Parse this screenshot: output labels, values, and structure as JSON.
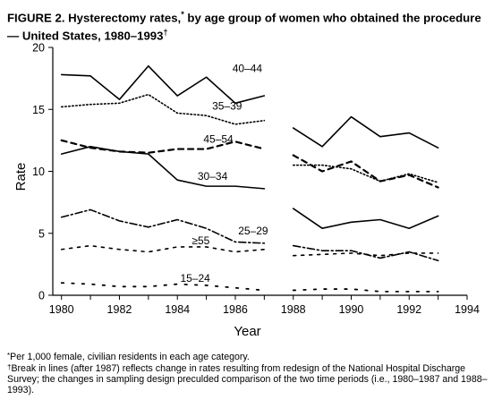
{
  "figure": {
    "title_line1": "FIGURE 2. Hysterectomy rates,",
    "title_mark1": "*",
    "title_line1b": " by age group of women who obtained the procedure",
    "title_line2": "— United States, 1980–1993",
    "title_mark2": "†"
  },
  "footnotes": [
    {
      "mark": "*",
      "text": "Per 1,000 female, civilian residents in each age category."
    },
    {
      "mark": "†",
      "text": "Break in lines (after 1987) reflects change in rates resulting from redesign of the National Hospital Discharge Survey; the changes in sampling design preculded comparison of the two time periods (i.e., 1980–1987 and 1988–1993)."
    }
  ],
  "chart_data": {
    "type": "line",
    "xlabel": "Year",
    "ylabel": "Rate",
    "xlim": [
      1979.7,
      1994
    ],
    "ylim": [
      0,
      20
    ],
    "xticks": [
      1980,
      1982,
      1984,
      1986,
      1988,
      1990,
      1992,
      1994
    ],
    "yticks": [
      0,
      5,
      10,
      15,
      20
    ],
    "grid": false,
    "legend": "inline labels",
    "series": [
      {
        "name": "40–44",
        "style": "solid",
        "x": [
          1980,
          1981,
          1982,
          1983,
          1984,
          1985,
          1986,
          1987,
          1988,
          1989,
          1990,
          1991,
          1992,
          1993
        ],
        "y": [
          17.8,
          17.7,
          15.8,
          18.5,
          16.1,
          17.6,
          15.5,
          16.1,
          13.5,
          12.0,
          14.4,
          12.8,
          13.1,
          11.9
        ]
      },
      {
        "name": "35–39",
        "style": "dotted",
        "x": [
          1980,
          1981,
          1982,
          1983,
          1984,
          1985,
          1986,
          1987,
          1988,
          1989,
          1990,
          1991,
          1992,
          1993
        ],
        "y": [
          15.2,
          15.4,
          15.5,
          16.2,
          14.7,
          14.5,
          13.8,
          14.1,
          10.5,
          10.5,
          10.2,
          9.2,
          9.8,
          9.1
        ]
      },
      {
        "name": "45–54",
        "style": "dashed",
        "x": [
          1980,
          1981,
          1982,
          1983,
          1984,
          1985,
          1986,
          1987,
          1988,
          1989,
          1990,
          1991,
          1992,
          1993
        ],
        "y": [
          12.5,
          11.9,
          11.6,
          11.5,
          11.8,
          11.8,
          12.4,
          11.8,
          11.3,
          10.0,
          10.8,
          9.2,
          9.7,
          8.7
        ]
      },
      {
        "name": "30–34",
        "style": "solid",
        "x": [
          1980,
          1981,
          1982,
          1983,
          1984,
          1985,
          1986,
          1987,
          1988,
          1989,
          1990,
          1991,
          1992,
          1993
        ],
        "y": [
          11.4,
          12.0,
          11.6,
          11.4,
          9.3,
          8.8,
          8.8,
          8.6,
          7.0,
          5.4,
          5.9,
          6.1,
          5.4,
          6.4
        ]
      },
      {
        "name": "25–29",
        "style": "dashdot",
        "x": [
          1980,
          1981,
          1982,
          1983,
          1984,
          1985,
          1986,
          1987,
          1988,
          1989,
          1990,
          1991,
          1992,
          1993
        ],
        "y": [
          6.3,
          6.9,
          6.0,
          5.5,
          6.1,
          5.4,
          4.3,
          4.2,
          4.0,
          3.6,
          3.6,
          3.0,
          3.5,
          2.8
        ]
      },
      {
        "name": "≥55",
        "style": "sparse-dashed",
        "x": [
          1980,
          1981,
          1982,
          1983,
          1984,
          1985,
          1986,
          1987,
          1988,
          1989,
          1990,
          1991,
          1992,
          1993
        ],
        "y": [
          3.7,
          4.0,
          3.7,
          3.5,
          3.9,
          3.9,
          3.5,
          3.7,
          3.2,
          3.3,
          3.4,
          3.2,
          3.4,
          3.4
        ]
      },
      {
        "name": "15–24",
        "style": "sparse-dotted",
        "x": [
          1980,
          1981,
          1982,
          1983,
          1984,
          1985,
          1986,
          1987,
          1988,
          1989,
          1990,
          1991,
          1992,
          1993
        ],
        "y": [
          1.0,
          0.9,
          0.7,
          0.7,
          0.9,
          0.8,
          0.6,
          0.4,
          0.4,
          0.5,
          0.5,
          0.3,
          0.3,
          0.3
        ]
      }
    ]
  }
}
